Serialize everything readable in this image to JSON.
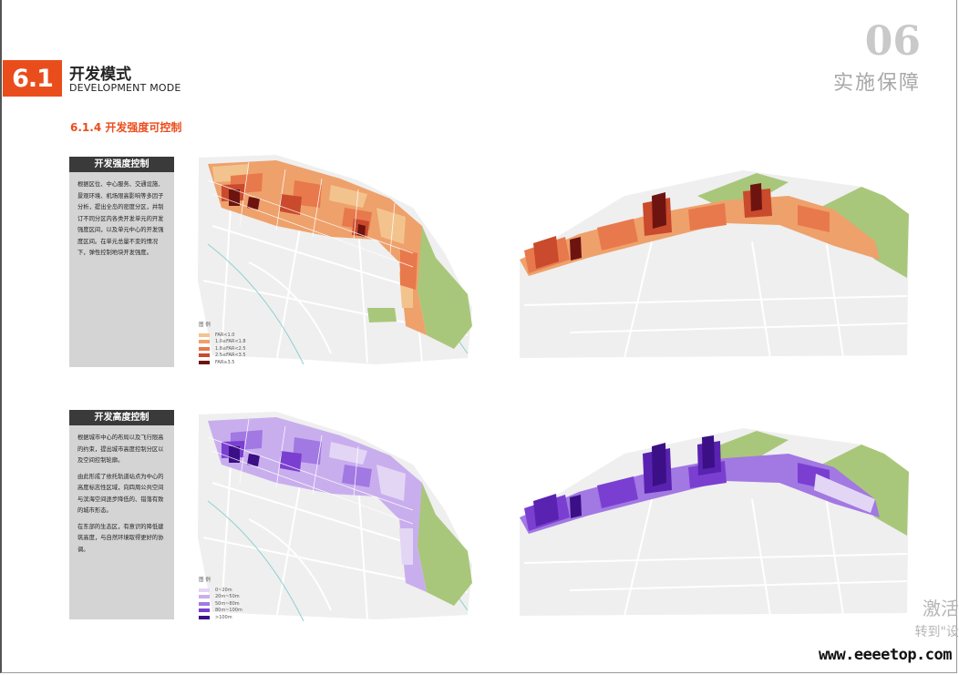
{
  "header": {
    "section_number": "6.1",
    "section_title_cn": "开发模式",
    "section_title_en": "DEVELOPMENT MODE",
    "chapter_number": "06",
    "chapter_title": "实施保障",
    "subsection_title": "6.1.4 开发强度可控制"
  },
  "intensity_block": {
    "card_title": "开发强度控制",
    "paragraphs": [
      "根据区位、中心服务、交通设施、景观环境、机场限高影响等多因子分析，提出全岛的密度分区，并制订不同分区内各类开发单元的开发强度区间，以及单元中心的开发强度区间。在单元总量不变的情况下，弹性控制地块开发强度。"
    ],
    "legend_title": "图  例",
    "legend_items": [
      {
        "label": "FAR<1.0",
        "color": "#f3c38e"
      },
      {
        "label": "1.0≤FAR<1.8",
        "color": "#eea16b"
      },
      {
        "label": "1.8≤FAR<2.5",
        "color": "#e8794c"
      },
      {
        "label": "2.5≤FAR<3.5",
        "color": "#c94a2c"
      },
      {
        "label": "FAR≥3.5",
        "color": "#6e1410"
      }
    ]
  },
  "height_block": {
    "card_title": "开发高度控制",
    "paragraphs": [
      "根据城市中心的布局以及飞行限高的约束，提出城市高度控制分区以及空间控制轮廓。",
      "由此形成了依托轨道站点为中心的高度标志性区域，向四周公共空间与滨海空间逐步降低的、错落有致的城市形态。",
      "在东部的生态区，有意识的降低建筑高度，与自然环境取得更好的协调。"
    ],
    "legend_title": "图  例",
    "legend_items": [
      {
        "label": "0~20m",
        "color": "#e3d6f5"
      },
      {
        "label": "20m~50m",
        "color": "#c9aeee"
      },
      {
        "label": "50m~80m",
        "color": "#a278e3"
      },
      {
        "label": "80m~100m",
        "color": "#7a3fd0"
      },
      {
        "label": ">100m",
        "color": "#3b0f86"
      }
    ]
  },
  "watermark": {
    "activate": "激活",
    "goto": "转到\"设",
    "site": "www.eeeetop.com"
  },
  "colors": {
    "accent": "#ea4d1c",
    "card_head": "#3a3a3a",
    "card_body": "#d4d4d4",
    "green_space": "#a9c77a",
    "road_gray": "#e9e9e9"
  }
}
